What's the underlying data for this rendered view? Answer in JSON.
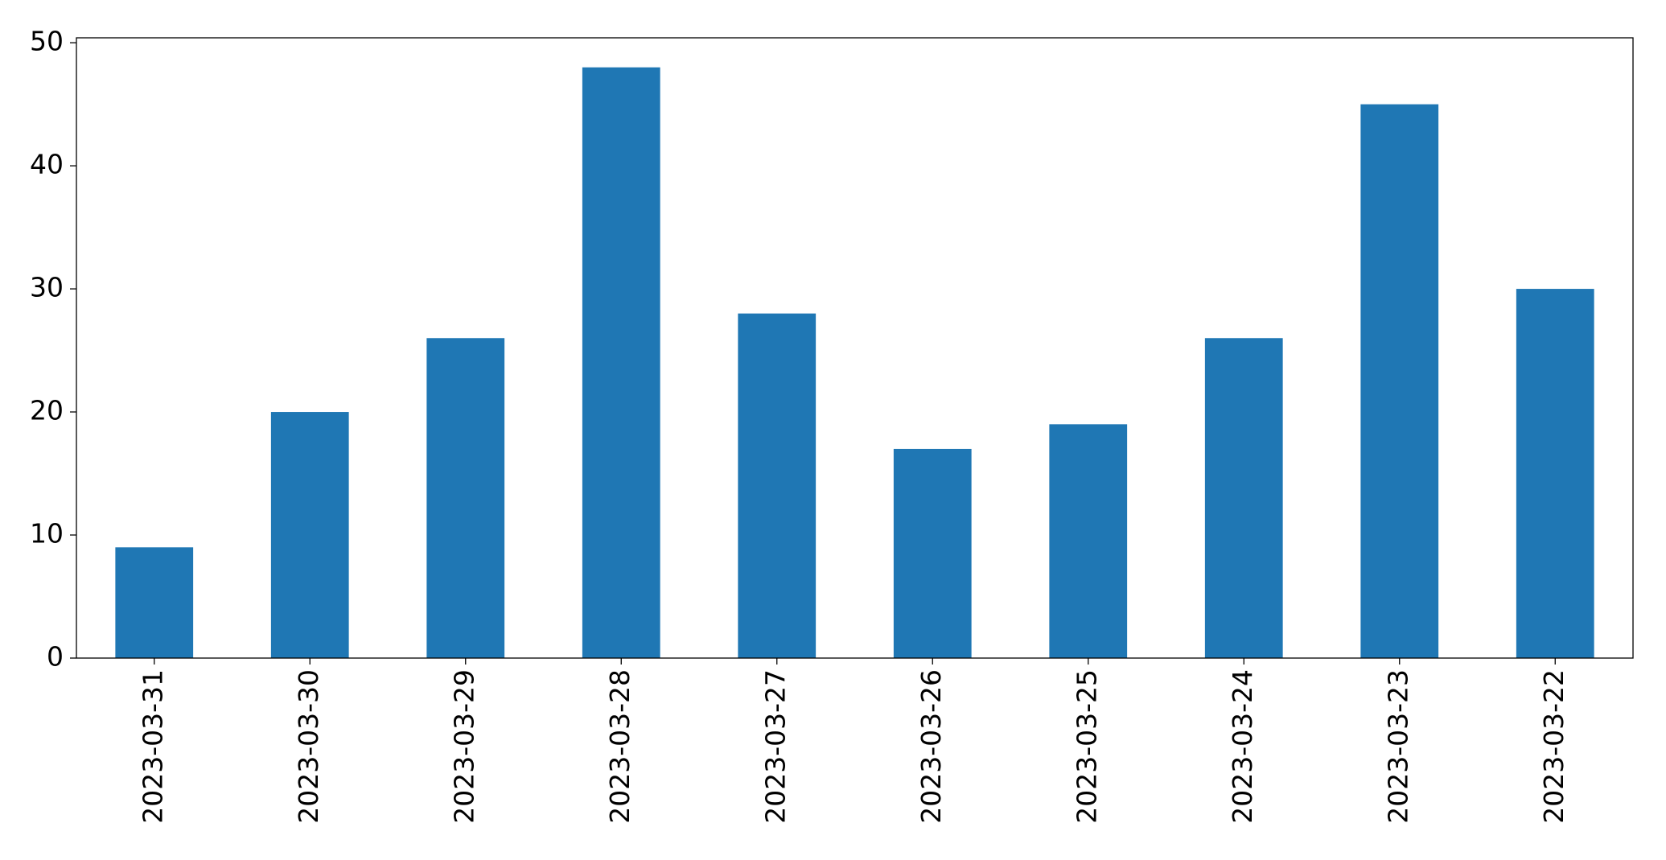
{
  "chart_data": {
    "type": "bar",
    "categories": [
      "2023-03-31",
      "2023-03-30",
      "2023-03-29",
      "2023-03-28",
      "2023-03-27",
      "2023-03-26",
      "2023-03-25",
      "2023-03-24",
      "2023-03-23",
      "2023-03-22"
    ],
    "values": [
      9,
      20,
      26,
      48,
      28,
      17,
      19,
      26,
      45,
      30
    ],
    "color": "#1f77b4",
    "ylim": [
      0,
      50.4
    ],
    "yticks": [
      0,
      10,
      20,
      30,
      40,
      50
    ],
    "grid": false
  }
}
